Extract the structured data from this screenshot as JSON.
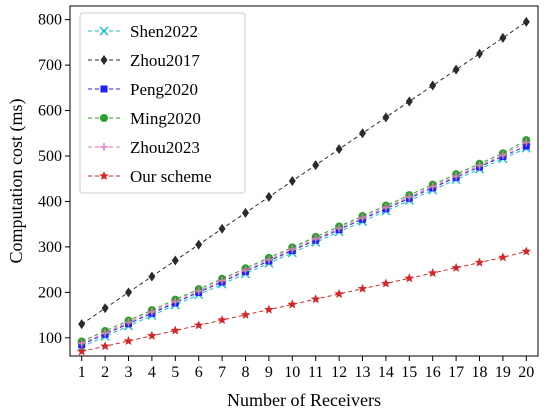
{
  "chart_data": {
    "type": "line",
    "xlabel": "Number of Receivers",
    "ylabel": "Computation cost (ms)",
    "x": [
      1,
      2,
      3,
      4,
      5,
      6,
      7,
      8,
      9,
      10,
      11,
      12,
      13,
      14,
      15,
      16,
      17,
      18,
      19,
      20
    ],
    "xlim": [
      0.5,
      20.5
    ],
    "ylim": [
      60,
      830
    ],
    "yticks": [
      100,
      200,
      300,
      400,
      500,
      600,
      700,
      800
    ],
    "grid": false,
    "legend_position": "top-left",
    "series": [
      {
        "name": "Shen2022",
        "color": "#17becf",
        "marker": "x",
        "values": [
          80,
          103,
          126,
          149,
          172,
          195,
          218,
          241,
          264,
          287,
          310,
          333,
          356,
          379,
          402,
          425,
          448,
          471,
          494,
          517
        ]
      },
      {
        "name": "Zhou2017",
        "color": "#2b2b2b",
        "marker": "diamond",
        "values": [
          130,
          165,
          200,
          235,
          270,
          305,
          340,
          375,
          410,
          445,
          480,
          515,
          550,
          585,
          620,
          655,
          690,
          725,
          760,
          795
        ]
      },
      {
        "name": "Peng2020",
        "color": "#1f1fff",
        "marker": "square",
        "values": [
          85,
          108,
          131,
          154,
          177,
          200,
          223,
          246,
          269,
          292,
          315,
          338,
          361,
          384,
          407,
          430,
          453,
          476,
          499,
          522
        ]
      },
      {
        "name": "Ming2020",
        "color": "#2ca02c",
        "marker": "circle",
        "values": [
          92,
          115,
          138,
          161,
          184,
          207,
          230,
          253,
          276,
          299,
          322,
          345,
          368,
          391,
          414,
          437,
          460,
          483,
          506,
          535
        ]
      },
      {
        "name": "Zhou2023",
        "color": "#e377c2",
        "marker": "plus",
        "values": [
          88,
          111,
          134,
          157,
          180,
          203,
          226,
          249,
          272,
          295,
          318,
          341,
          364,
          387,
          410,
          433,
          456,
          479,
          502,
          530
        ]
      },
      {
        "name": "Our scheme",
        "color": "#d62728",
        "marker": "star",
        "values": [
          70,
          81.5,
          93,
          104.5,
          116,
          127.5,
          139,
          150.5,
          162,
          173.5,
          185,
          196.5,
          208,
          219.5,
          231,
          242.5,
          254,
          265.5,
          277,
          290
        ]
      }
    ]
  }
}
